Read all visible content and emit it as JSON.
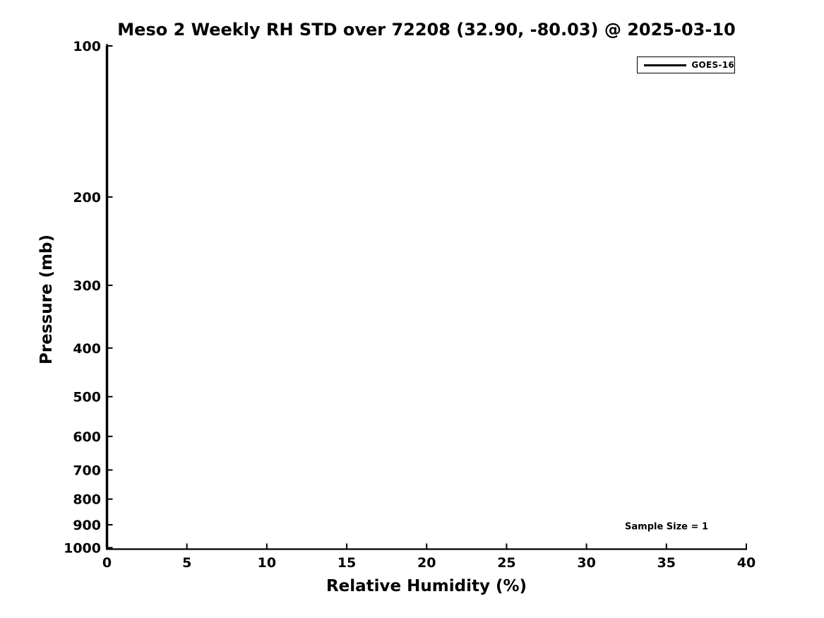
{
  "figure": {
    "background": "#ffffff",
    "text_color": "#000000",
    "axis_color": "#000000"
  },
  "chart_data": {
    "type": "line",
    "title": "Meso 2 Weekly RH STD over 72208 (32.90, -80.03) @ 2025-03-10",
    "xlabel": "Relative Humidity (%)",
    "ylabel": "Pressure (mb)",
    "xlim": [
      0,
      40
    ],
    "xticks": [
      0,
      5,
      10,
      15,
      20,
      25,
      30,
      35,
      40
    ],
    "yscale": "log",
    "y_axis_inverted": true,
    "ylim_top": 100,
    "ylim_bottom": 1000,
    "yticks": [
      100,
      200,
      300,
      400,
      500,
      600,
      700,
      800,
      900,
      1000
    ],
    "grid": false,
    "legend": {
      "position": "upper right",
      "entries": [
        {
          "label": "GOES-16",
          "color": "#000000",
          "line_width": 3
        }
      ]
    },
    "annotations": [
      {
        "text": "Sample Size = 1"
      }
    ],
    "series": [
      {
        "name": "GOES-16",
        "color": "#000000",
        "line_width": 3.5,
        "x": [
          0,
          0,
          0,
          0,
          0,
          0,
          0,
          0,
          0,
          0
        ],
        "y": [
          100,
          200,
          300,
          400,
          500,
          600,
          700,
          800,
          900,
          1000
        ]
      }
    ]
  }
}
